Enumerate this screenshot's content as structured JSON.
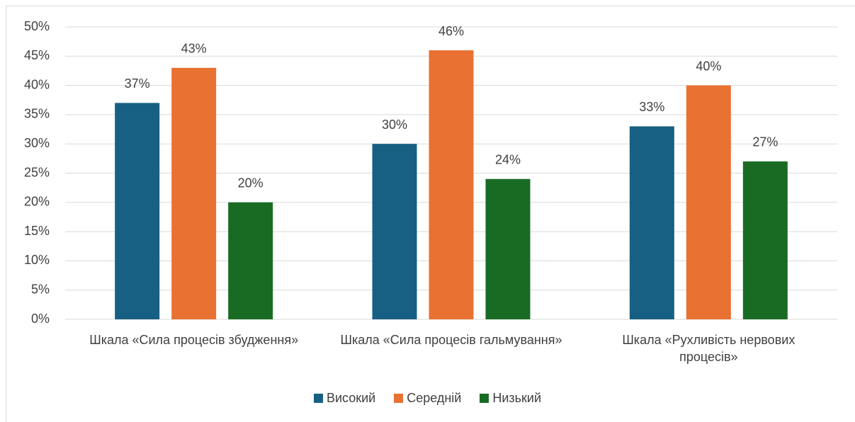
{
  "chart_data": {
    "type": "bar",
    "categories": [
      "Шкала «Сила процесів збудження»",
      "Шкала «Сила процесів гальмування»",
      "Шкала «Рухливість нервових процесів»"
    ],
    "series": [
      {
        "name": "Високий",
        "color": "#176083",
        "values": [
          37,
          30,
          33
        ],
        "value_labels": [
          "37%",
          "30%",
          "33%"
        ]
      },
      {
        "name": "Середній",
        "color": "#e97132",
        "values": [
          43,
          46,
          40
        ],
        "value_labels": [
          "43%",
          "46%",
          "40%"
        ]
      },
      {
        "name": "Низький",
        "color": "#196b24",
        "values": [
          20,
          24,
          27
        ],
        "value_labels": [
          "20%",
          "24%",
          "27%"
        ]
      }
    ],
    "ylim": [
      0,
      50
    ],
    "yticks": [
      {
        "value": 0,
        "label": "0%"
      },
      {
        "value": 5,
        "label": "5%"
      },
      {
        "value": 10,
        "label": "10%"
      },
      {
        "value": 15,
        "label": "15%"
      },
      {
        "value": 20,
        "label": "20%"
      },
      {
        "value": 25,
        "label": "25%"
      },
      {
        "value": 30,
        "label": "30%"
      },
      {
        "value": 35,
        "label": "35%"
      },
      {
        "value": 40,
        "label": "40%"
      },
      {
        "value": 45,
        "label": "45%"
      },
      {
        "value": 50,
        "label": "50%"
      }
    ],
    "grid": true,
    "legend": "bottom"
  }
}
